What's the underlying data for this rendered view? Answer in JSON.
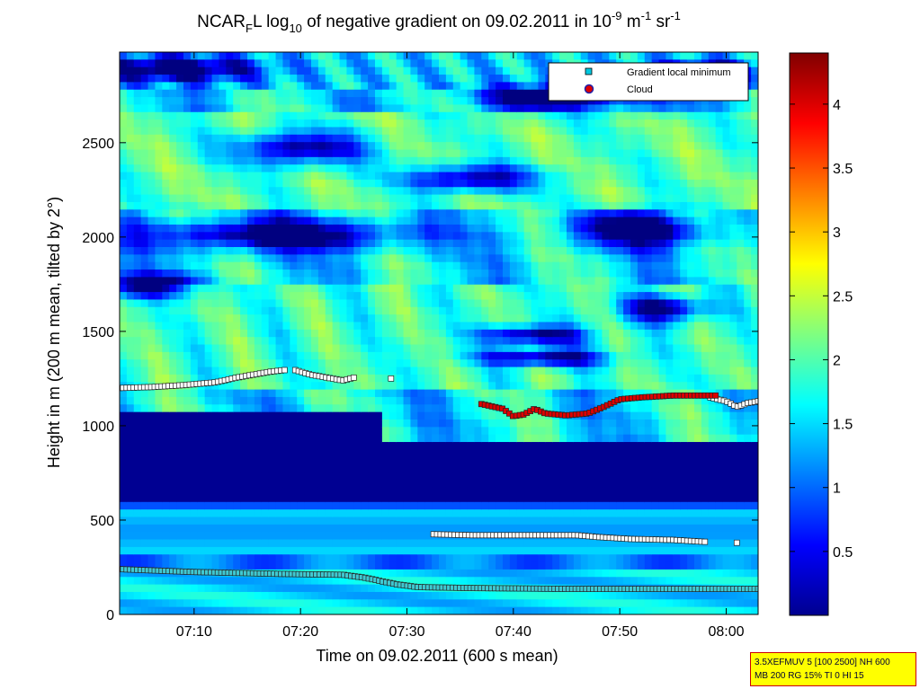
{
  "chart_data": {
    "type": "heatmap",
    "title": {
      "prefix": "NCAR",
      "sub1": "F",
      "mid": "L log",
      "sub2": "10",
      "rest": " of negative gradient on 09.02.2011 in 10",
      "sup1": "-9",
      "unit": " m",
      "sup2": "-1",
      "unit2": " sr",
      "sup3": "-1"
    },
    "xlabel": "Time on 09.02.2011 (600 s mean)",
    "ylabel": "Height in m (200 m mean, tilted by 2°)",
    "xlim_minutes": [
      423,
      483
    ],
    "ylim": [
      0,
      2980
    ],
    "x_ticks": [
      {
        "minute": 430,
        "label": "07:10"
      },
      {
        "minute": 440,
        "label": "07:20"
      },
      {
        "minute": 450,
        "label": "07:30"
      },
      {
        "minute": 460,
        "label": "07:40"
      },
      {
        "minute": 470,
        "label": "07:50"
      },
      {
        "minute": 480,
        "label": "08:00"
      }
    ],
    "y_ticks": [
      0,
      500,
      1000,
      1500,
      2000,
      2500
    ],
    "colorbar": {
      "range": [
        0,
        4.4
      ],
      "ticks": [
        "0.5",
        "1",
        "1.5",
        "2",
        "2.5",
        "3",
        "3.5",
        "4"
      ],
      "colormap": "jet"
    },
    "legend": {
      "position": "top-right",
      "entries": [
        {
          "label": "Gradient local minimum",
          "marker": "square",
          "color": "#00c8e0"
        },
        {
          "label": "Cloud",
          "marker": "circle",
          "color": "#dd0000"
        }
      ]
    },
    "series": [
      {
        "name": "Gradient local minimum",
        "segments": [
          {
            "points": [
              [
                423,
                1200
              ],
              [
                426,
                1205
              ],
              [
                429,
                1215
              ],
              [
                432,
                1230
              ],
              [
                434,
                1255
              ],
              [
                437,
                1285
              ],
              [
                438.5,
                1295
              ]
            ]
          },
          {
            "points": [
              [
                439.5,
                1295
              ],
              [
                441,
                1270
              ],
              [
                443,
                1250
              ],
              [
                444,
                1240
              ],
              [
                445,
                1255
              ]
            ]
          },
          {
            "points": [
              [
                448.5,
                1250
              ]
            ]
          },
          {
            "points": [
              [
                478.5,
                1150
              ],
              [
                480,
                1130
              ],
              [
                481,
                1100
              ],
              [
                482,
                1120
              ],
              [
                483,
                1130
              ]
            ]
          },
          {
            "points": [
              [
                452.5,
                425
              ],
              [
                456,
                420
              ],
              [
                461,
                420
              ],
              [
                466,
                420
              ],
              [
                468,
                410
              ],
              [
                471,
                400
              ],
              [
                475,
                395
              ],
              [
                478,
                385
              ]
            ]
          },
          {
            "points": [
              [
                481,
                380
              ]
            ]
          },
          {
            "points": [
              [
                423,
                240
              ],
              [
                430,
                225
              ],
              [
                438,
                215
              ],
              [
                444,
                210
              ],
              [
                446,
                195
              ],
              [
                449,
                160
              ],
              [
                451,
                145
              ],
              [
                456,
                140
              ],
              [
                466,
                135
              ],
              [
                476,
                135
              ],
              [
                483,
                135
              ]
            ]
          }
        ]
      },
      {
        "name": "Cloud",
        "segments": [
          {
            "points": [
              [
                457,
                1115
              ],
              [
                459,
                1090
              ],
              [
                460,
                1050
              ],
              [
                461,
                1060
              ],
              [
                462,
                1090
              ],
              [
                463,
                1065
              ],
              [
                465,
                1055
              ],
              [
                467,
                1065
              ],
              [
                468.5,
                1100
              ],
              [
                470,
                1140
              ],
              [
                472,
                1150
              ],
              [
                475,
                1160
              ],
              [
                476.5,
                1160
              ],
              [
                479,
                1160
              ]
            ]
          }
        ]
      }
    ]
  },
  "info": {
    "line1": "3.5XEFMUV 5 [100 2500] NH 600",
    "line2": "MB 200 RG 15% TI 0 HI 15"
  }
}
